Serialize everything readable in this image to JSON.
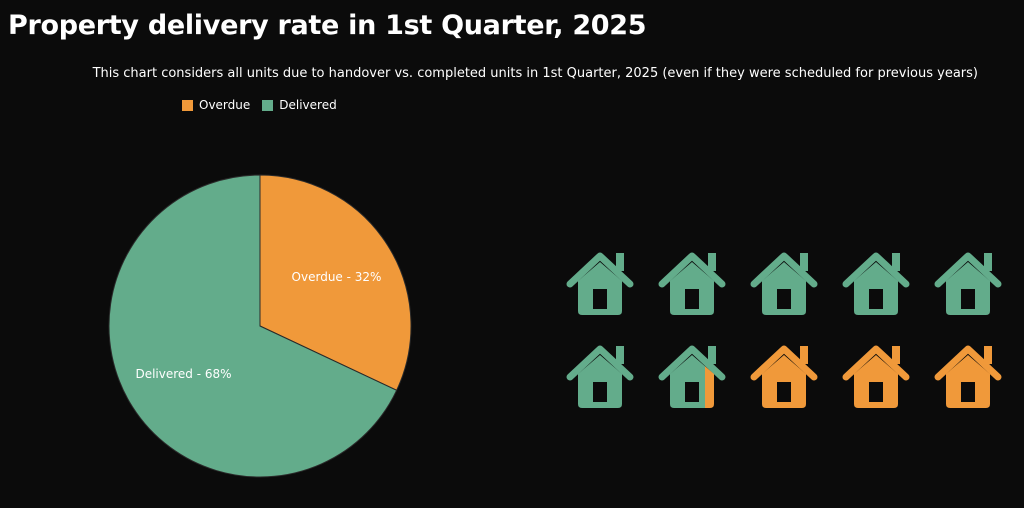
{
  "chart_data": {
    "type": "pie",
    "title": "Property delivery rate in 1st Quarter, 2025",
    "subtitle": "This chart considers all units due to handover vs. completed units in 1st Quarter, 2025 (even if they were scheduled for previous years)",
    "legend": {
      "placement": "top-left"
    },
    "slices": [
      {
        "name": "Overdue",
        "value": 32,
        "label": "Overdue - 32%",
        "color": "#f0993a"
      },
      {
        "name": "Delivered",
        "value": 68,
        "label": "Delivered - 68%",
        "color": "#63ac8b"
      }
    ],
    "pictograph": {
      "total_icons": 10,
      "icon": "house-icon",
      "filled_series": "Delivered",
      "filled_fraction": 0.68,
      "colors": {
        "Delivered": "#63ac8b",
        "Overdue": "#f0993a"
      }
    }
  }
}
